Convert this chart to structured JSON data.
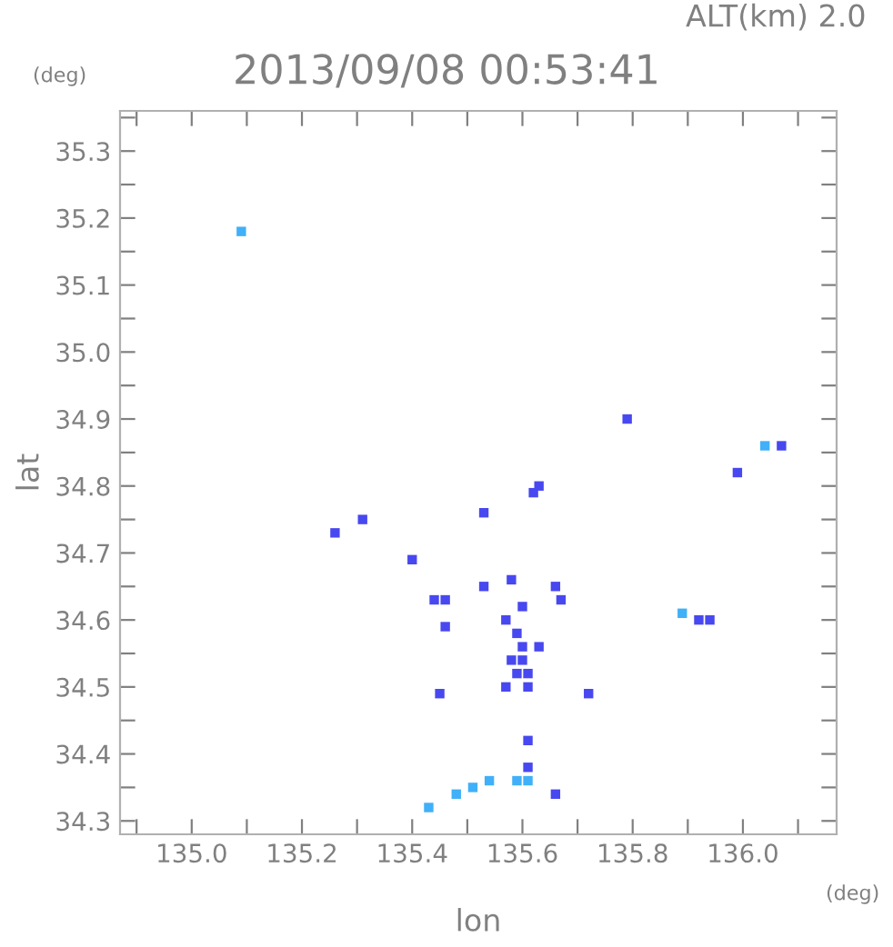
{
  "chart_data": {
    "type": "scatter",
    "title": "2013/09/08 00:53:41",
    "xlabel": "lon",
    "ylabel": "lat",
    "annotations": [
      "ALT(km) 2.0",
      "(deg)",
      "(deg)"
    ],
    "marker": "square",
    "grid": false,
    "xlim": [
      134.87,
      136.17
    ],
    "ylim": [
      34.28,
      35.36
    ],
    "xticks": [
      {
        "value": 134.9,
        "label": null
      },
      {
        "value": 135.0,
        "label": "135.0"
      },
      {
        "value": 135.1,
        "label": null
      },
      135.2,
      {
        "value": 135.3,
        "label": null
      },
      135.4,
      {
        "value": 135.5,
        "label": null
      },
      135.6,
      {
        "value": 135.7,
        "label": null
      },
      135.8,
      {
        "value": 135.9,
        "label": null
      },
      {
        "value": 136.0,
        "label": "136.0"
      },
      {
        "value": 136.1,
        "label": null
      }
    ],
    "yticks": [
      34.3,
      {
        "value": 34.35,
        "label": null
      },
      34.4,
      {
        "value": 34.45,
        "label": null
      },
      34.5,
      {
        "value": 34.55,
        "label": null
      },
      34.6,
      {
        "value": 34.65,
        "label": null
      },
      34.7,
      {
        "value": 34.75,
        "label": null
      },
      34.8,
      {
        "value": 34.85,
        "label": null
      },
      34.9,
      {
        "value": 34.95,
        "label": null
      },
      {
        "value": 35.0,
        "label": "35.0"
      },
      {
        "value": 35.05,
        "label": null
      },
      35.1,
      {
        "value": 35.15,
        "label": null
      },
      35.2,
      {
        "value": 35.25,
        "label": null
      },
      35.3,
      {
        "value": 35.35,
        "label": null
      }
    ],
    "series": [
      {
        "color": "#4848f0",
        "x": [
          135.79,
          136.07,
          135.99,
          135.26,
          135.31,
          135.53,
          135.62,
          135.63,
          135.4,
          135.44,
          135.46,
          135.53,
          135.58,
          135.66,
          135.67,
          135.6,
          135.57,
          135.46,
          135.59,
          135.6,
          135.6,
          135.63,
          135.58,
          135.59,
          135.61,
          135.57,
          135.61,
          135.45,
          135.72,
          135.61,
          135.61,
          135.66,
          135.92,
          135.94
        ],
        "values": [
          34.9,
          34.86,
          34.82,
          34.73,
          34.75,
          34.76,
          34.79,
          34.8,
          34.69,
          34.63,
          34.63,
          34.65,
          34.66,
          34.65,
          34.63,
          34.62,
          34.6,
          34.59,
          34.58,
          34.56,
          34.54,
          34.56,
          34.54,
          34.52,
          34.52,
          34.5,
          34.5,
          34.49,
          34.49,
          34.42,
          34.38,
          34.34,
          34.6,
          34.6
        ]
      },
      {
        "color": "#40b0f8",
        "x": [
          135.09,
          136.04,
          135.43,
          135.48,
          135.51,
          135.54,
          135.59,
          135.61,
          135.89
        ],
        "values": [
          35.18,
          34.86,
          34.32,
          34.34,
          34.35,
          34.36,
          34.36,
          34.36,
          34.61
        ]
      }
    ]
  }
}
